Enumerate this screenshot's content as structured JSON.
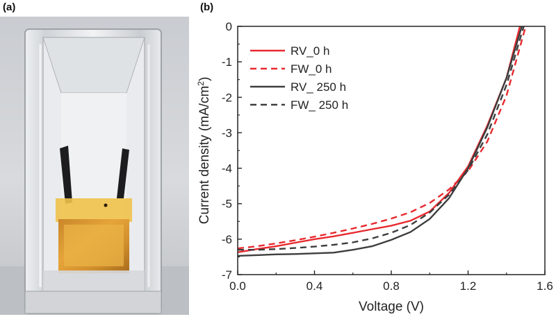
{
  "panels": {
    "a_label": "(a)",
    "b_label": "(b)"
  },
  "photo": {
    "description_icon": "encapsulated-cell-photo"
  },
  "chart_data": {
    "type": "line",
    "xlabel": "Voltage (V)",
    "ylabel_main": "Current density (mA/cm",
    "ylabel_sup": "2",
    "ylabel_end": ")",
    "xlim": [
      0.0,
      1.6
    ],
    "ylim": [
      -7,
      0
    ],
    "xticks": [
      "0.0",
      "0.4",
      "0.8",
      "1.2",
      "1.6"
    ],
    "yticks": [
      "0",
      "-1",
      "-2",
      "-3",
      "-4",
      "-5",
      "-6",
      "-7"
    ],
    "grid": false,
    "legend_position": "top-left",
    "series": [
      {
        "name": "RV_0 h",
        "color": "#e8292e",
        "dash": "solid",
        "x": [
          0.0,
          0.1,
          0.2,
          0.3,
          0.4,
          0.5,
          0.6,
          0.7,
          0.8,
          0.9,
          1.0,
          1.1,
          1.2,
          1.3,
          1.4,
          1.47
        ],
        "y": [
          -6.37,
          -6.28,
          -6.2,
          -6.1,
          -6.0,
          -5.92,
          -5.82,
          -5.72,
          -5.62,
          -5.48,
          -5.22,
          -4.7,
          -3.95,
          -2.8,
          -1.45,
          0.0
        ]
      },
      {
        "name": "FW_0 h",
        "color": "#e8292e",
        "dash": "dashed",
        "x": [
          0.0,
          0.1,
          0.2,
          0.3,
          0.4,
          0.5,
          0.6,
          0.7,
          0.8,
          0.9,
          1.0,
          1.1,
          1.2,
          1.3,
          1.4,
          1.5
        ],
        "y": [
          -6.26,
          -6.2,
          -6.12,
          -6.03,
          -5.93,
          -5.82,
          -5.7,
          -5.57,
          -5.42,
          -5.24,
          -4.98,
          -4.6,
          -4.08,
          -3.25,
          -1.95,
          0.0
        ]
      },
      {
        "name": "RV_ 250 h",
        "color": "#3d3d3d",
        "dash": "solid",
        "x": [
          0.0,
          0.1,
          0.2,
          0.3,
          0.4,
          0.5,
          0.6,
          0.7,
          0.8,
          0.9,
          1.0,
          1.1,
          1.2,
          1.3,
          1.4,
          1.48
        ],
        "y": [
          -6.47,
          -6.45,
          -6.43,
          -6.42,
          -6.4,
          -6.38,
          -6.3,
          -6.2,
          -6.02,
          -5.8,
          -5.43,
          -4.85,
          -4.0,
          -2.85,
          -1.45,
          0.0
        ]
      },
      {
        "name": "FW_ 250 h",
        "color": "#3d3d3d",
        "dash": "dashed",
        "x": [
          0.0,
          0.1,
          0.2,
          0.3,
          0.4,
          0.5,
          0.6,
          0.7,
          0.8,
          0.9,
          1.0,
          1.1,
          1.2,
          1.3,
          1.4,
          1.49
        ],
        "y": [
          -6.3,
          -6.3,
          -6.28,
          -6.25,
          -6.21,
          -6.16,
          -6.09,
          -5.98,
          -5.82,
          -5.6,
          -5.25,
          -4.75,
          -4.05,
          -3.05,
          -1.65,
          0.0
        ]
      }
    ]
  }
}
